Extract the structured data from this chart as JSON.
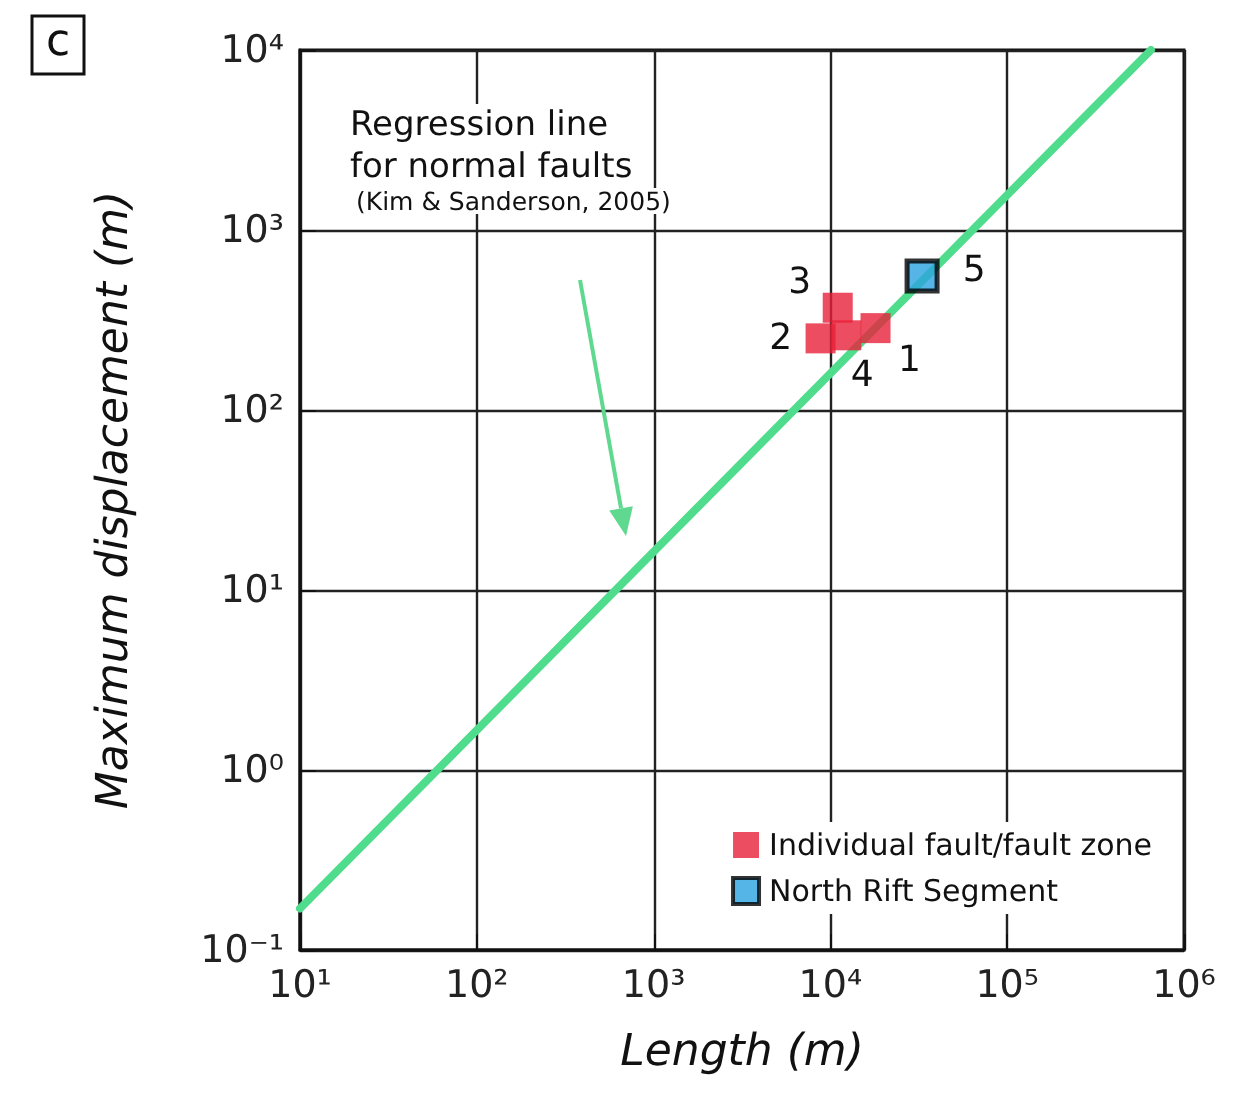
{
  "chart_data": {
    "type": "scatter",
    "title": "c",
    "xlabel": "Length (m)",
    "ylabel": "Maximum displacement (m)",
    "log": "xy",
    "xlim": [
      10,
      1000000
    ],
    "ylim": [
      0.1,
      10000
    ],
    "xticks": [
      {
        "value": 10,
        "label": "10¹"
      },
      {
        "value": 100,
        "label": "10²"
      },
      {
        "value": 1000,
        "label": "10³"
      },
      {
        "value": 10000,
        "label": "10⁴"
      },
      {
        "value": 100000,
        "label": "10⁵"
      },
      {
        "value": 1000000,
        "label": "10⁶"
      }
    ],
    "yticks": [
      {
        "value": 0.1,
        "label": "10⁻¹"
      },
      {
        "value": 1,
        "label": "10⁰"
      },
      {
        "value": 10,
        "label": "10¹"
      },
      {
        "value": 100,
        "label": "10²"
      },
      {
        "value": 1000,
        "label": "10³"
      },
      {
        "value": 10000,
        "label": "10⁴"
      }
    ],
    "grid": true,
    "legend": "bottom right",
    "marker": "square",
    "series": [
      {
        "type": "line",
        "color": "#4fdc8c",
        "x": [
          10,
          650000
        ],
        "values": [
          0.17,
          10000
        ],
        "marker": "none",
        "line_style": "solid"
      },
      {
        "name": "Individual fault/fault zone",
        "color": "#e8203a",
        "x": [
          18000,
          8800,
          11000,
          12300
        ],
        "values": [
          285,
          250,
          370,
          260
        ]
      },
      {
        "name": "North Rift Segment",
        "color": "#2ba3e0",
        "x": [
          33000
        ],
        "values": [
          555
        ]
      }
    ],
    "annotations": [
      "Regression line\nfor normal faults",
      "(Kim & Sanderson, 2005)",
      {
        "text": "1",
        "x": 18000,
        "y": 285
      },
      {
        "text": "2",
        "x": 8800,
        "y": 250
      },
      {
        "text": "3",
        "x": 11000,
        "y": 370
      },
      {
        "text": "4",
        "x": 12300,
        "y": 260
      },
      {
        "text": "5",
        "x": 33000,
        "y": 555
      }
    ]
  }
}
